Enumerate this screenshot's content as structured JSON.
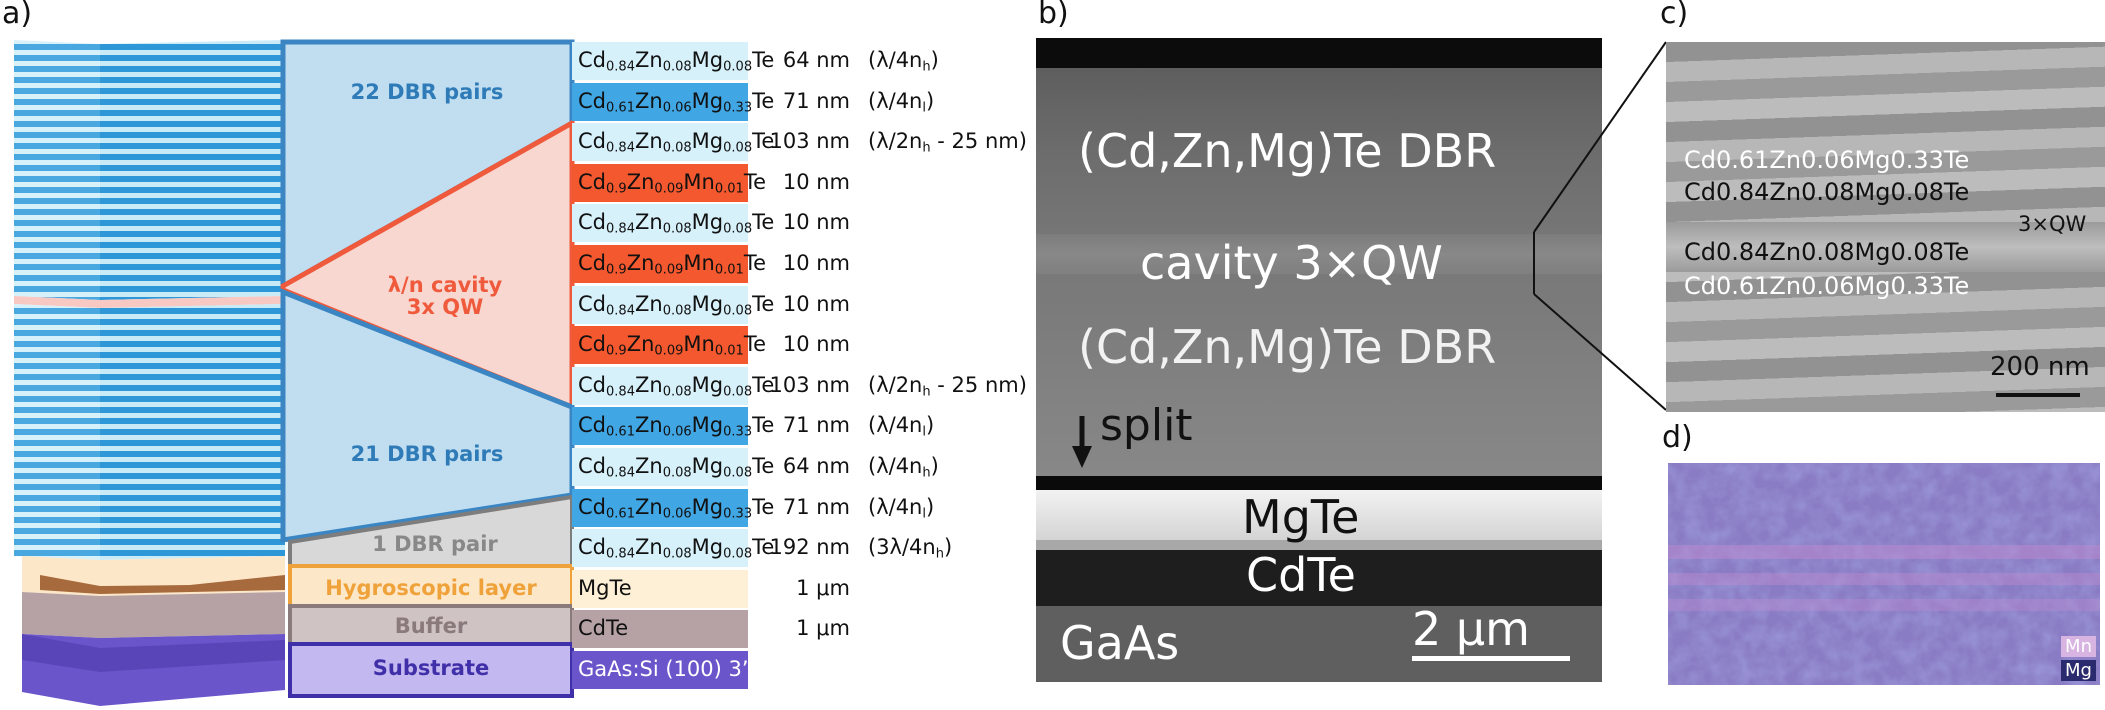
{
  "panels": {
    "a": "a)",
    "b": "b)",
    "c": "c)",
    "d": "d)"
  },
  "colors": {
    "dbr_high": "#d7f1fb",
    "dbr_low": "#40a6e4",
    "qw": "#f4582e",
    "mgte": "#fdf0d7",
    "cdte": "#b6a2a4",
    "gaas": "#6a55ca",
    "dbr_region": "#3b8ed0",
    "cavity_region": "#f0573b"
  },
  "regions": {
    "top_dbr": "22 DBR pairs",
    "cavity_line1": "λ/n cavity",
    "cavity_line2": "3x QW",
    "bottom_dbr": "21 DBR pairs",
    "one_dbr": "1 DBR pair",
    "hygroscopic": "Hygroscopic layer",
    "buffer": "Buffer",
    "substrate": "Substrate"
  },
  "layers": [
    {
      "el": [
        "Cd",
        "0.84",
        "Zn",
        "0.08",
        "Mg",
        "0.08",
        "Te"
      ],
      "thickness": "64 nm",
      "note": "(λ/4n",
      "note_sub": "h",
      "kind": "high"
    },
    {
      "el": [
        "Cd",
        "0.61",
        "Zn",
        "0.06",
        "Mg",
        "0.33",
        "Te"
      ],
      "thickness": "71 nm",
      "note": "(λ/4n",
      "note_sub": "l",
      "kind": "low"
    },
    {
      "el": [
        "Cd",
        "0.84",
        "Zn",
        "0.08",
        "Mg",
        "0.08",
        "Te"
      ],
      "thickness": "103 nm",
      "note": "(λ/2n",
      "note_sub": "h",
      "note_tail": " - 25 nm)",
      "kind": "high"
    },
    {
      "el": [
        "Cd",
        "0.9",
        "Zn",
        "0.09",
        "Mn",
        "0.01",
        "Te"
      ],
      "thickness": "10 nm",
      "kind": "qw"
    },
    {
      "el": [
        "Cd",
        "0.84",
        "Zn",
        "0.08",
        "Mg",
        "0.08",
        "Te"
      ],
      "thickness": "10 nm",
      "kind": "high"
    },
    {
      "el": [
        "Cd",
        "0.9",
        "Zn",
        "0.09",
        "Mn",
        "0.01",
        "Te"
      ],
      "thickness": "10 nm",
      "kind": "qw"
    },
    {
      "el": [
        "Cd",
        "0.84",
        "Zn",
        "0.08",
        "Mg",
        "0.08",
        "Te"
      ],
      "thickness": "10 nm",
      "kind": "high"
    },
    {
      "el": [
        "Cd",
        "0.9",
        "Zn",
        "0.09",
        "Mn",
        "0.01",
        "Te"
      ],
      "thickness": "10 nm",
      "kind": "qw"
    },
    {
      "el": [
        "Cd",
        "0.84",
        "Zn",
        "0.08",
        "Mg",
        "0.08",
        "Te"
      ],
      "thickness": "103 nm",
      "note": "(λ/2n",
      "note_sub": "h",
      "note_tail": " - 25 nm)",
      "kind": "high"
    },
    {
      "el": [
        "Cd",
        "0.61",
        "Zn",
        "0.06",
        "Mg",
        "0.33",
        "Te"
      ],
      "thickness": "71 nm",
      "note": "(λ/4n",
      "note_sub": "l",
      "kind": "low"
    },
    {
      "el": [
        "Cd",
        "0.84",
        "Zn",
        "0.08",
        "Mg",
        "0.08",
        "Te"
      ],
      "thickness": "64 nm",
      "note": "(λ/4n",
      "note_sub": "h",
      "kind": "high"
    },
    {
      "el": [
        "Cd",
        "0.61",
        "Zn",
        "0.06",
        "Mg",
        "0.33",
        "Te"
      ],
      "thickness": "71 nm",
      "note": "(λ/4n",
      "note_sub": "l",
      "kind": "low"
    },
    {
      "el": [
        "Cd",
        "0.84",
        "Zn",
        "0.08",
        "Mg",
        "0.08",
        "Te"
      ],
      "thickness": "192 nm",
      "note": "(3λ/4n",
      "note_sub": "h",
      "kind": "high"
    },
    {
      "plain": "MgTe",
      "thickness": "1 μm",
      "kind": "mgte"
    },
    {
      "plain": "CdTe",
      "thickness": "1 μm",
      "kind": "cdte"
    },
    {
      "plain": "GaAs:Si (100) 3”",
      "kind": "gaas"
    }
  ],
  "tem": {
    "top_dbr": "(Cd,Zn,Mg)Te  DBR",
    "cavity": "cavity  3×QW",
    "bottom_dbr": "(Cd,Zn,Mg)Te  DBR",
    "split": "split",
    "mgte": "MgTe",
    "cdte": "CdTe",
    "gaas": "GaAs",
    "scale": "2 μm"
  },
  "zoom": {
    "line1": "Cd0.61Zn0.06Mg0.33Te",
    "line2": "Cd0.84Zn0.08Mg0.08Te",
    "line3": "Cd0.84Zn0.08Mg0.08Te",
    "line4": "Cd0.61Zn0.06Mg0.33Te",
    "qw": "3×QW",
    "scale": "200 nm"
  },
  "eds": {
    "mn": "Mn",
    "mg": "Mg"
  }
}
